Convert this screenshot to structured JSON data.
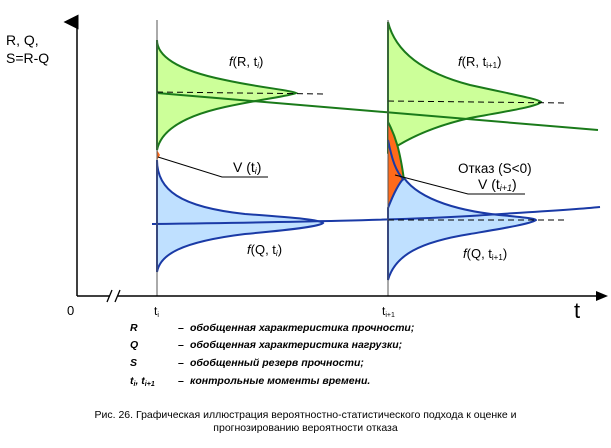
{
  "axis": {
    "y_label_line1": "R, Q,",
    "y_label_line2": "S=R-Q",
    "x_label": "t",
    "origin": "0",
    "tick_i": "t",
    "tick_i_sub": "i",
    "tick_i1": "t",
    "tick_i1_sub": "i+1"
  },
  "labels": {
    "fR_i": {
      "f": "f",
      "main": "(R, t",
      "sub": "i",
      "close": ")"
    },
    "fR_i1": {
      "f": "f",
      "main": "(R, t",
      "sub": "i+1",
      "close": ")"
    },
    "fQ_i": {
      "f": "f",
      "main": "(Q, t",
      "sub": "i",
      "close": ")"
    },
    "fQ_i1": {
      "f": "f",
      "main": "(Q, t",
      "sub": "i+1",
      "close": ")"
    },
    "V_i": {
      "main": "V (t",
      "sub": "i",
      "close": ")"
    },
    "failure": "Отказ (S<0)",
    "V_i1": {
      "main": "V (t",
      "sub": "i+1",
      "close": ")"
    }
  },
  "legend": [
    {
      "symbol": "R",
      "dash": "–",
      "text": "обобщенная характеристика прочности;"
    },
    {
      "symbol": "Q",
      "dash": "–",
      "text": "обобщенная характеристика нагрузки;"
    },
    {
      "symbol": "S",
      "dash": "–",
      "text": "обобщенный резерв прочности;"
    },
    {
      "symbol": "t",
      "symbol_sub": "i",
      "symbol_sep": ", t",
      "symbol_sub2": "i+1",
      "dash": "–",
      "text": "контрольные моменты времени."
    }
  ],
  "caption": {
    "line1": "Рис. 26. Графическая иллюстрация вероятностно-статистического подхода к оценке и",
    "line2": "прогнозированию вероятности отказа"
  },
  "colors": {
    "strength_fill": "#ccff99",
    "strength_line": "#1a7a1a",
    "load_fill": "#bfe0ff",
    "load_line": "#1a3aa6",
    "failure_fill": "#ff6a1a"
  }
}
